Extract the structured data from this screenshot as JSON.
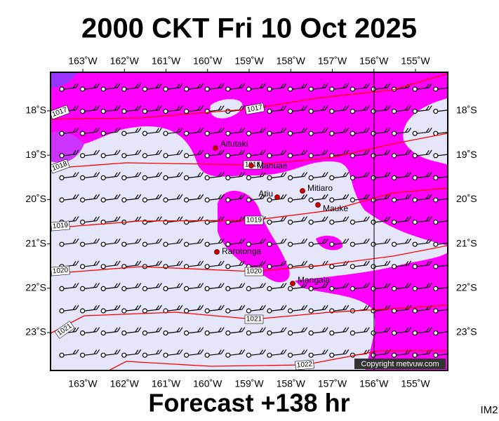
{
  "title": "2000 CKT Fri 10 Oct 2025",
  "footer": "Forecast +138 hr",
  "image_id": "IM2",
  "copyright": "Copyright metvuw.com",
  "lon_ticks": [
    {
      "value": -163,
      "label": "163˚W"
    },
    {
      "value": -162,
      "label": "162˚W"
    },
    {
      "value": -161,
      "label": "161˚W"
    },
    {
      "value": -160,
      "label": "160˚W"
    },
    {
      "value": -159,
      "label": "159˚W"
    },
    {
      "value": -158,
      "label": "158˚W"
    },
    {
      "value": -157,
      "label": "157˚W"
    },
    {
      "value": -156,
      "label": "156˚W"
    },
    {
      "value": -155,
      "label": "155˚W"
    }
  ],
  "lat_ticks": [
    {
      "value": -18,
      "label": "18˚S"
    },
    {
      "value": -19,
      "label": "19˚S"
    },
    {
      "value": -20,
      "label": "20˚S"
    },
    {
      "value": -21,
      "label": "21˚S"
    },
    {
      "value": -22,
      "label": "22˚S"
    },
    {
      "value": -23,
      "label": "23˚S"
    }
  ],
  "islands": [
    "Aitutaki",
    "Manuae",
    "Atiu",
    "Mitiaro",
    "Mauke",
    "Rarotonga",
    "Mangaia"
  ],
  "isobar_labels": [
    "1017",
    "1017",
    "1018",
    "1018",
    "1019",
    "1019",
    "1020",
    "1020",
    "1021",
    "1021",
    "1022"
  ]
}
